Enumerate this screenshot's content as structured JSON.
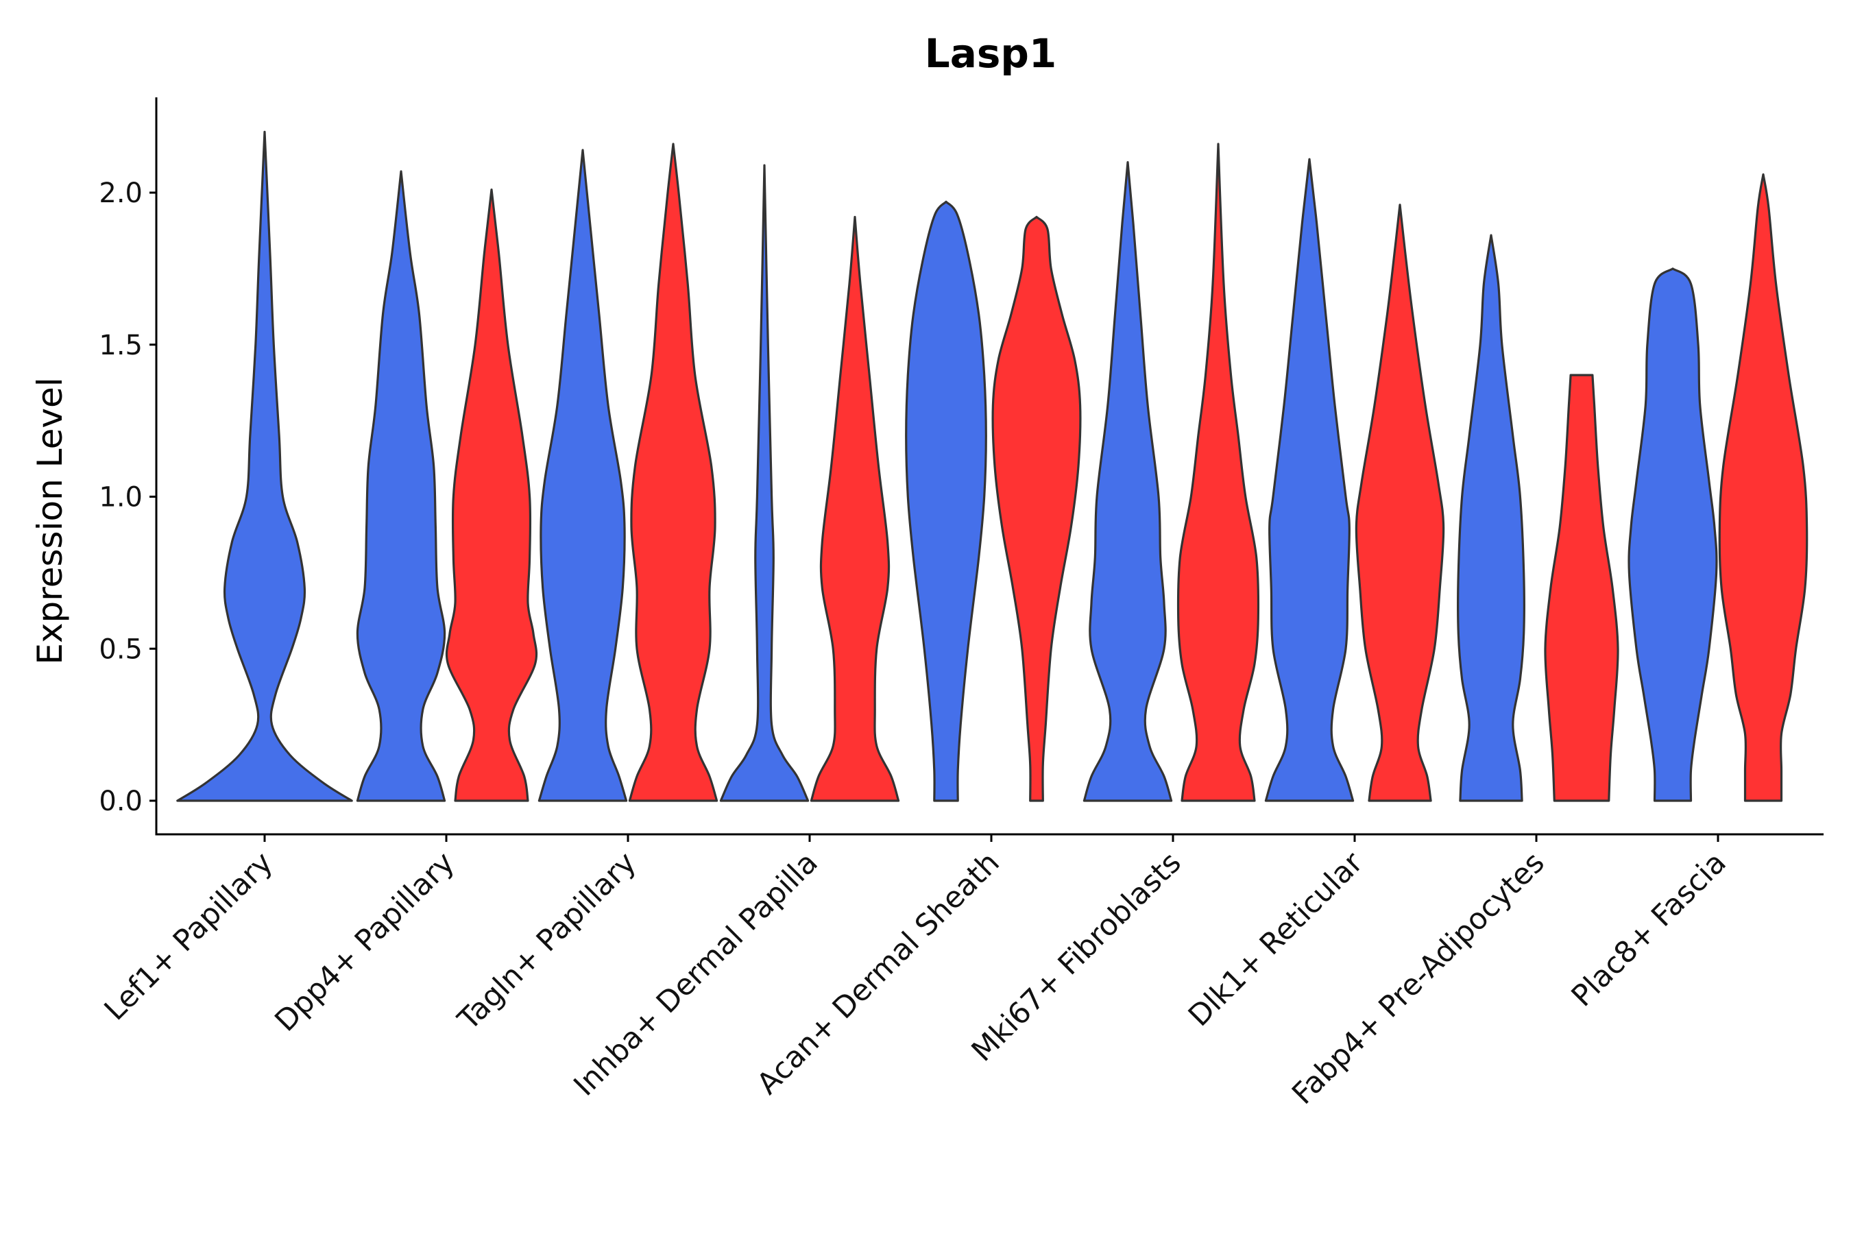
{
  "chart_data": {
    "type": "violin",
    "title": "Lasp1",
    "xlabel": "",
    "ylabel": "Expression Level",
    "ylim": [
      -0.11,
      2.32
    ],
    "yticks": [
      0.0,
      0.5,
      1.0,
      1.5,
      2.0
    ],
    "ytick_labels": [
      "0.0",
      "0.5",
      "1.0",
      "1.5",
      "2.0"
    ],
    "grid": false,
    "legend": "none",
    "categories": [
      "Lef1+ Papillary",
      "Dpp4+ Papillary",
      "Tagln+ Papillary",
      "Inhba+ Dermal Papilla",
      "Acan+ Dermal Sheath",
      "Mki67+ Fibroblasts",
      "Dlk1+ Reticular",
      "Fabp4+ Pre-Adipocytes",
      "Plac8+ Fascia"
    ],
    "series": [
      {
        "name": "blue",
        "color": "#4570EA",
        "violins": [
          {
            "category": "Lef1+ Papillary",
            "max": 2.2,
            "profile": [
              [
                0.0,
                0.48
              ],
              [
                0.06,
                0.32
              ],
              [
                0.15,
                0.14
              ],
              [
                0.25,
                0.04
              ],
              [
                0.35,
                0.06
              ],
              [
                0.5,
                0.15
              ],
              [
                0.6,
                0.2
              ],
              [
                0.7,
                0.22
              ],
              [
                0.85,
                0.18
              ],
              [
                1.0,
                0.1
              ],
              [
                1.2,
                0.08
              ],
              [
                1.5,
                0.05
              ],
              [
                1.8,
                0.03
              ],
              [
                2.2,
                0.0
              ]
            ]
          },
          {
            "category": "Dpp4+ Papillary",
            "max": 2.07,
            "profile": [
              [
                0.0,
                0.24
              ],
              [
                0.08,
                0.2
              ],
              [
                0.18,
                0.12
              ],
              [
                0.3,
                0.12
              ],
              [
                0.42,
                0.2
              ],
              [
                0.55,
                0.24
              ],
              [
                0.7,
                0.2
              ],
              [
                0.9,
                0.19
              ],
              [
                1.1,
                0.18
              ],
              [
                1.3,
                0.14
              ],
              [
                1.6,
                0.1
              ],
              [
                1.8,
                0.05
              ],
              [
                2.07,
                0.0
              ]
            ]
          },
          {
            "category": "Tagln+ Papillary",
            "max": 2.14,
            "profile": [
              [
                0.0,
                0.24
              ],
              [
                0.08,
                0.2
              ],
              [
                0.18,
                0.14
              ],
              [
                0.3,
                0.13
              ],
              [
                0.5,
                0.18
              ],
              [
                0.7,
                0.22
              ],
              [
                0.9,
                0.23
              ],
              [
                1.05,
                0.21
              ],
              [
                1.3,
                0.14
              ],
              [
                1.6,
                0.09
              ],
              [
                1.9,
                0.04
              ],
              [
                2.14,
                0.0
              ]
            ]
          },
          {
            "category": "Inhba+ Dermal Papilla",
            "max": 2.09,
            "profile": [
              [
                0.0,
                0.24
              ],
              [
                0.08,
                0.18
              ],
              [
                0.15,
                0.1
              ],
              [
                0.25,
                0.04
              ],
              [
                0.5,
                0.04
              ],
              [
                0.8,
                0.05
              ],
              [
                1.0,
                0.04
              ],
              [
                1.5,
                0.02
              ],
              [
                2.09,
                0.0
              ]
            ]
          },
          {
            "category": "Acan+ Dermal Sheath",
            "max": 1.97,
            "profile": [
              [
                0.0,
                0.065
              ],
              [
                0.1,
                0.065
              ],
              [
                0.25,
                0.08
              ],
              [
                0.5,
                0.12
              ],
              [
                0.8,
                0.18
              ],
              [
                1.0,
                0.21
              ],
              [
                1.2,
                0.22
              ],
              [
                1.4,
                0.21
              ],
              [
                1.6,
                0.18
              ],
              [
                1.8,
                0.12
              ],
              [
                1.93,
                0.06
              ],
              [
                1.97,
                0.0
              ]
            ]
          },
          {
            "category": "Mki67+ Fibroblasts",
            "max": 2.1,
            "profile": [
              [
                0.0,
                0.24
              ],
              [
                0.08,
                0.2
              ],
              [
                0.18,
                0.12
              ],
              [
                0.3,
                0.1
              ],
              [
                0.5,
                0.2
              ],
              [
                0.65,
                0.2
              ],
              [
                0.8,
                0.18
              ],
              [
                1.0,
                0.17
              ],
              [
                1.3,
                0.11
              ],
              [
                1.6,
                0.07
              ],
              [
                1.9,
                0.03
              ],
              [
                2.1,
                0.0
              ]
            ]
          },
          {
            "category": "Dlk1+ Reticular",
            "max": 2.11,
            "profile": [
              [
                0.0,
                0.24
              ],
              [
                0.08,
                0.2
              ],
              [
                0.18,
                0.13
              ],
              [
                0.3,
                0.13
              ],
              [
                0.5,
                0.2
              ],
              [
                0.7,
                0.21
              ],
              [
                0.9,
                0.22
              ],
              [
                1.0,
                0.2
              ],
              [
                1.3,
                0.14
              ],
              [
                1.6,
                0.09
              ],
              [
                1.9,
                0.04
              ],
              [
                2.11,
                0.0
              ]
            ]
          },
          {
            "category": "Fabp4+ Pre-Adipocytes",
            "max": 1.86,
            "profile": [
              [
                0.0,
                0.17
              ],
              [
                0.1,
                0.16
              ],
              [
                0.25,
                0.12
              ],
              [
                0.4,
                0.16
              ],
              [
                0.55,
                0.18
              ],
              [
                0.75,
                0.18
              ],
              [
                1.0,
                0.16
              ],
              [
                1.2,
                0.12
              ],
              [
                1.5,
                0.06
              ],
              [
                1.7,
                0.04
              ],
              [
                1.86,
                0.0
              ]
            ]
          },
          {
            "category": "Plac8+ Fascia",
            "max": 1.75,
            "profile": [
              [
                0.0,
                0.1
              ],
              [
                0.1,
                0.1
              ],
              [
                0.2,
                0.12
              ],
              [
                0.35,
                0.16
              ],
              [
                0.5,
                0.2
              ],
              [
                0.75,
                0.24
              ],
              [
                0.9,
                0.23
              ],
              [
                1.05,
                0.2
              ],
              [
                1.3,
                0.15
              ],
              [
                1.5,
                0.14
              ],
              [
                1.7,
                0.1
              ],
              [
                1.75,
                0.0
              ]
            ]
          }
        ]
      },
      {
        "name": "red",
        "color": "#FF3333",
        "violins": [
          {
            "category": "Dpp4+ Papillary",
            "max": 2.01,
            "profile": [
              [
                0.0,
                0.2
              ],
              [
                0.08,
                0.18
              ],
              [
                0.2,
                0.1
              ],
              [
                0.3,
                0.12
              ],
              [
                0.45,
                0.24
              ],
              [
                0.55,
                0.23
              ],
              [
                0.65,
                0.2
              ],
              [
                0.8,
                0.21
              ],
              [
                1.0,
                0.21
              ],
              [
                1.2,
                0.17
              ],
              [
                1.5,
                0.09
              ],
              [
                1.8,
                0.04
              ],
              [
                2.01,
                0.0
              ]
            ]
          },
          {
            "category": "Tagln+ Papillary",
            "max": 2.16,
            "profile": [
              [
                0.0,
                0.24
              ],
              [
                0.08,
                0.2
              ],
              [
                0.18,
                0.13
              ],
              [
                0.3,
                0.13
              ],
              [
                0.5,
                0.2
              ],
              [
                0.7,
                0.2
              ],
              [
                0.9,
                0.23
              ],
              [
                1.1,
                0.21
              ],
              [
                1.4,
                0.12
              ],
              [
                1.7,
                0.08
              ],
              [
                2.0,
                0.03
              ],
              [
                2.16,
                0.0
              ]
            ]
          },
          {
            "category": "Inhba+ Dermal Papilla",
            "max": 1.92,
            "profile": [
              [
                0.0,
                0.24
              ],
              [
                0.08,
                0.2
              ],
              [
                0.18,
                0.12
              ],
              [
                0.3,
                0.11
              ],
              [
                0.5,
                0.12
              ],
              [
                0.7,
                0.18
              ],
              [
                0.85,
                0.18
              ],
              [
                1.1,
                0.13
              ],
              [
                1.4,
                0.08
              ],
              [
                1.7,
                0.03
              ],
              [
                1.92,
                0.0
              ]
            ]
          },
          {
            "category": "Acan+ Dermal Sheath",
            "max": 1.92,
            "profile": [
              [
                0.0,
                0.035
              ],
              [
                0.12,
                0.035
              ],
              [
                0.25,
                0.05
              ],
              [
                0.5,
                0.08
              ],
              [
                0.7,
                0.13
              ],
              [
                0.9,
                0.19
              ],
              [
                1.1,
                0.23
              ],
              [
                1.3,
                0.24
              ],
              [
                1.45,
                0.21
              ],
              [
                1.6,
                0.14
              ],
              [
                1.75,
                0.08
              ],
              [
                1.88,
                0.06
              ],
              [
                1.92,
                0.0
              ]
            ]
          },
          {
            "category": "Mki67+ Fibroblasts",
            "max": 2.16,
            "profile": [
              [
                0.0,
                0.2
              ],
              [
                0.08,
                0.18
              ],
              [
                0.18,
                0.12
              ],
              [
                0.3,
                0.14
              ],
              [
                0.45,
                0.2
              ],
              [
                0.6,
                0.22
              ],
              [
                0.8,
                0.21
              ],
              [
                1.0,
                0.15
              ],
              [
                1.2,
                0.11
              ],
              [
                1.4,
                0.07
              ],
              [
                1.7,
                0.03
              ],
              [
                2.16,
                0.0
              ]
            ]
          },
          {
            "category": "Dlk1+ Reticular",
            "max": 1.96,
            "profile": [
              [
                0.0,
                0.17
              ],
              [
                0.08,
                0.15
              ],
              [
                0.18,
                0.1
              ],
              [
                0.3,
                0.12
              ],
              [
                0.5,
                0.19
              ],
              [
                0.7,
                0.22
              ],
              [
                0.9,
                0.24
              ],
              [
                1.05,
                0.21
              ],
              [
                1.3,
                0.14
              ],
              [
                1.6,
                0.07
              ],
              [
                1.8,
                0.03
              ],
              [
                1.96,
                0.0
              ]
            ]
          },
          {
            "category": "Fabp4+ Pre-Adipocytes",
            "max": 1.4,
            "profile": [
              [
                0.0,
                0.15
              ],
              [
                0.15,
                0.16
              ],
              [
                0.3,
                0.18
              ],
              [
                0.5,
                0.2
              ],
              [
                0.7,
                0.17
              ],
              [
                0.9,
                0.12
              ],
              [
                1.1,
                0.09
              ],
              [
                1.3,
                0.07
              ],
              [
                1.4,
                0.06
              ]
            ]
          },
          {
            "category": "Plac8+ Fascia",
            "max": 2.06,
            "profile": [
              [
                0.0,
                0.1
              ],
              [
                0.1,
                0.1
              ],
              [
                0.22,
                0.1
              ],
              [
                0.35,
                0.15
              ],
              [
                0.5,
                0.18
              ],
              [
                0.7,
                0.23
              ],
              [
                0.9,
                0.24
              ],
              [
                1.1,
                0.22
              ],
              [
                1.4,
                0.14
              ],
              [
                1.7,
                0.07
              ],
              [
                1.95,
                0.03
              ],
              [
                2.06,
                0.0
              ]
            ]
          }
        ]
      }
    ]
  }
}
